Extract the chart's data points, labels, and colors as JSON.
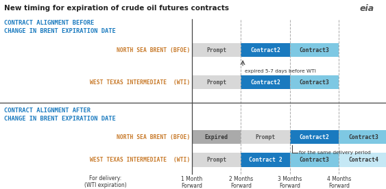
{
  "title": "New timing for expiration of crude oil futures contracts",
  "bg_color": "#ffffff",
  "orange_color": "#c87a2a",
  "dark_blue": "#1a7abf",
  "light_blue": "#7ec8e3",
  "gray_color": "#999999",
  "light_gray": "#d8d8d8",
  "x_labels": [
    "1 Month\nForward",
    "2 Months\nForward",
    "3 Months\nForward",
    "4 Months\nForward"
  ],
  "section1_title": "CONTRACT ALIGNMENT BEFORE\nCHANGE IN BRENT EXPIRATION DATE",
  "section1_brent": "NORTH SEA BRENT (BFOE)",
  "section1_wti": "WEST TEXAS INTERMEDIATE  (WTI)",
  "section2_title": "CONTRACT ALIGNMENT AFTER\nCHANGE IN BRENT EXPIRATION DATE",
  "section2_brent": "NORTH SEA BRENT (BFOE)",
  "section2_wti": "WEST TEXAS INTERMEDIATE  (WTI)",
  "footer_label": "For delivery:\n(WTI expiration)",
  "annotation1": "expired 5-7 days before WTI",
  "annotation2": "for the same delivery period"
}
